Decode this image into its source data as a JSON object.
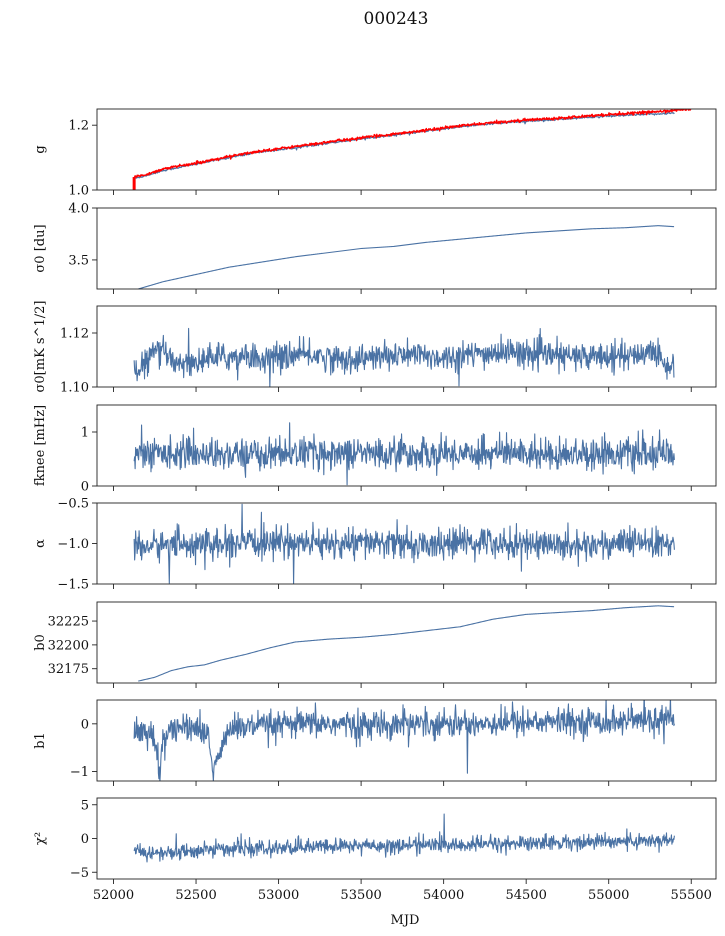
{
  "figure": {
    "title": "000243",
    "xlabel": "MJD"
  },
  "colors": {
    "series": "#4a72a4",
    "overlay": "#ff0000",
    "frame": "#222222"
  },
  "chart_data": [
    {
      "type": "line",
      "ylabel": "g",
      "xlim": [
        51900,
        55650
      ],
      "ylim": [
        1.0,
        1.25
      ],
      "yticks": [
        1.0,
        1.2
      ],
      "ytick_labels": [
        "1.0",
        "1.2"
      ],
      "series": [
        {
          "x": [
            52125,
            52200,
            52300,
            52450,
            52600,
            52750,
            52900,
            53100,
            53300,
            53500,
            53700,
            53900,
            54100,
            54300,
            54500,
            54700,
            54900,
            55100,
            55300,
            55400
          ],
          "y": [
            1.035,
            1.045,
            1.06,
            1.075,
            1.09,
            1.105,
            1.118,
            1.13,
            1.145,
            1.158,
            1.17,
            1.182,
            1.195,
            1.205,
            1.212,
            1.218,
            1.225,
            1.23,
            1.235,
            1.238
          ]
        },
        {
          "x": [
            52125,
            52200,
            52300,
            52450,
            52600,
            52750,
            52900,
            53100,
            53300,
            53500,
            53700,
            53900,
            54100,
            54300,
            54500,
            54700,
            54900,
            55100,
            55300,
            55500
          ],
          "y": [
            1.04,
            1.048,
            1.065,
            1.078,
            1.093,
            1.108,
            1.121,
            1.134,
            1.148,
            1.161,
            1.173,
            1.185,
            1.198,
            1.208,
            1.216,
            1.222,
            1.23,
            1.236,
            1.242,
            1.25
          ]
        }
      ]
    },
    {
      "type": "line",
      "ylabel": "σ0 [du]",
      "xlim": [
        51900,
        55650
      ],
      "ylim": [
        3.22,
        4.0
      ],
      "yticks": [
        3.5,
        4.0
      ],
      "ytick_labels": [
        "3.5",
        "4.0"
      ],
      "x": [
        52150,
        52300,
        52500,
        52700,
        52900,
        53100,
        53300,
        53500,
        53700,
        53900,
        54100,
        54300,
        54500,
        54700,
        54900,
        55100,
        55300,
        55400
      ],
      "y": [
        3.22,
        3.29,
        3.36,
        3.43,
        3.48,
        3.53,
        3.57,
        3.61,
        3.63,
        3.67,
        3.7,
        3.73,
        3.76,
        3.78,
        3.8,
        3.81,
        3.83,
        3.82
      ]
    },
    {
      "type": "line",
      "ylabel": "σ0[mK s^1/2]",
      "xlim": [
        51900,
        55650
      ],
      "ylim": [
        1.1,
        1.13
      ],
      "yticks": [
        1.1,
        1.12
      ],
      "ytick_labels": [
        "1.10",
        "1.12"
      ],
      "x": [
        52125,
        52150,
        52200,
        52250,
        52300,
        52350,
        52400,
        52500,
        52600,
        52700,
        52800,
        52900,
        53000,
        53200,
        53400,
        53600,
        53800,
        54000,
        54200,
        54400,
        54600,
        54800,
        55000,
        55150,
        55250,
        55300,
        55350,
        55400
      ],
      "y": [
        1.106,
        1.105,
        1.11,
        1.113,
        1.112,
        1.111,
        1.109,
        1.109,
        1.111,
        1.111,
        1.112,
        1.11,
        1.111,
        1.112,
        1.11,
        1.111,
        1.112,
        1.111,
        1.112,
        1.113,
        1.112,
        1.111,
        1.112,
        1.111,
        1.114,
        1.113,
        1.107,
        1.108
      ]
    },
    {
      "type": "line",
      "ylabel": "fknee [mHz]",
      "xlim": [
        51900,
        55650
      ],
      "ylim": [
        0,
        1.5
      ],
      "yticks": [
        0,
        1
      ],
      "ytick_labels": [
        "0",
        "1"
      ],
      "x": [
        52125,
        52400,
        52700,
        53000,
        53300,
        53600,
        53900,
        54200,
        54500,
        54800,
        55100,
        55400
      ],
      "y": [
        0.6,
        0.62,
        0.58,
        0.61,
        0.63,
        0.6,
        0.59,
        0.62,
        0.6,
        0.61,
        0.6,
        0.58
      ]
    },
    {
      "type": "line",
      "ylabel": "α",
      "xlim": [
        51900,
        55650
      ],
      "ylim": [
        -1.5,
        -0.5
      ],
      "yticks": [
        -1.5,
        -1.0,
        -0.5
      ],
      "ytick_labels": [
        "−1.5",
        "−1.0",
        "−0.5"
      ],
      "x": [
        52125,
        52400,
        52700,
        53000,
        53300,
        53600,
        53900,
        54200,
        54500,
        54800,
        55100,
        55400
      ],
      "y": [
        -1.05,
        -1.0,
        -1.02,
        -0.98,
        -1.01,
        -0.99,
        -1.03,
        -0.97,
        -1.0,
        -1.02,
        -0.99,
        -1.01
      ]
    },
    {
      "type": "line",
      "ylabel": "b0",
      "xlim": [
        51900,
        55650
      ],
      "ylim": [
        32160,
        32245
      ],
      "yticks": [
        32175,
        32200,
        32225
      ],
      "ytick_labels": [
        "32175",
        "32200",
        "32225"
      ],
      "x": [
        52150,
        52250,
        52350,
        52450,
        52550,
        52650,
        52800,
        52950,
        53100,
        53300,
        53500,
        53700,
        53900,
        54100,
        54300,
        54500,
        54700,
        54900,
        55100,
        55300,
        55400
      ],
      "y": [
        32162,
        32166,
        32173,
        32177,
        32179,
        32184,
        32190,
        32197,
        32203,
        32206,
        32208,
        32211,
        32215,
        32219,
        32227,
        32232,
        32234,
        32236,
        32239,
        32241,
        32240
      ]
    },
    {
      "type": "line",
      "ylabel": "b1",
      "xlim": [
        51900,
        55650
      ],
      "ylim": [
        -1.2,
        0.5
      ],
      "yticks": [
        -1,
        0
      ],
      "ytick_labels": [
        "−1",
        "0"
      ],
      "x": [
        52125,
        52200,
        52250,
        52280,
        52300,
        52400,
        52500,
        52580,
        52600,
        52700,
        52900,
        53200,
        53500,
        53800,
        54100,
        54400,
        54700,
        55000,
        55300,
        55400
      ],
      "y": [
        -0.1,
        -0.2,
        -0.4,
        -1.1,
        -0.2,
        -0.1,
        -0.05,
        -0.3,
        -1.0,
        -0.1,
        -0.05,
        0.0,
        -0.02,
        0.02,
        0.0,
        0.03,
        0.05,
        0.05,
        0.08,
        0.05
      ]
    },
    {
      "type": "line",
      "ylabel": "χ²",
      "xlim": [
        51900,
        55650
      ],
      "ylim": [
        -6,
        6
      ],
      "yticks": [
        -5,
        0,
        5
      ],
      "ytick_labels": [
        "−5",
        "0",
        "5"
      ],
      "x": [
        52125,
        52300,
        52500,
        52700,
        52900,
        53100,
        53300,
        53500,
        53700,
        53900,
        54100,
        54300,
        54500,
        54700,
        54900,
        55100,
        55300,
        55400
      ],
      "y": [
        -2.0,
        -2.2,
        -1.8,
        -1.5,
        -1.6,
        -1.3,
        -1.2,
        -1.0,
        -1.1,
        -0.9,
        -1.0,
        -0.8,
        -0.7,
        -0.6,
        -0.5,
        -0.4,
        -0.3,
        -0.3
      ]
    }
  ],
  "xaxis": {
    "ticks": [
      52000,
      52500,
      53000,
      53500,
      54000,
      54500,
      55000,
      55500
    ],
    "tick_labels": [
      "52000",
      "52500",
      "53000",
      "53500",
      "54000",
      "54500",
      "55000",
      "55500"
    ]
  },
  "noise": {
    "panels": [
      0,
      0,
      0.0025,
      0.14,
      0.09,
      0,
      0.14,
      0.55
    ]
  }
}
